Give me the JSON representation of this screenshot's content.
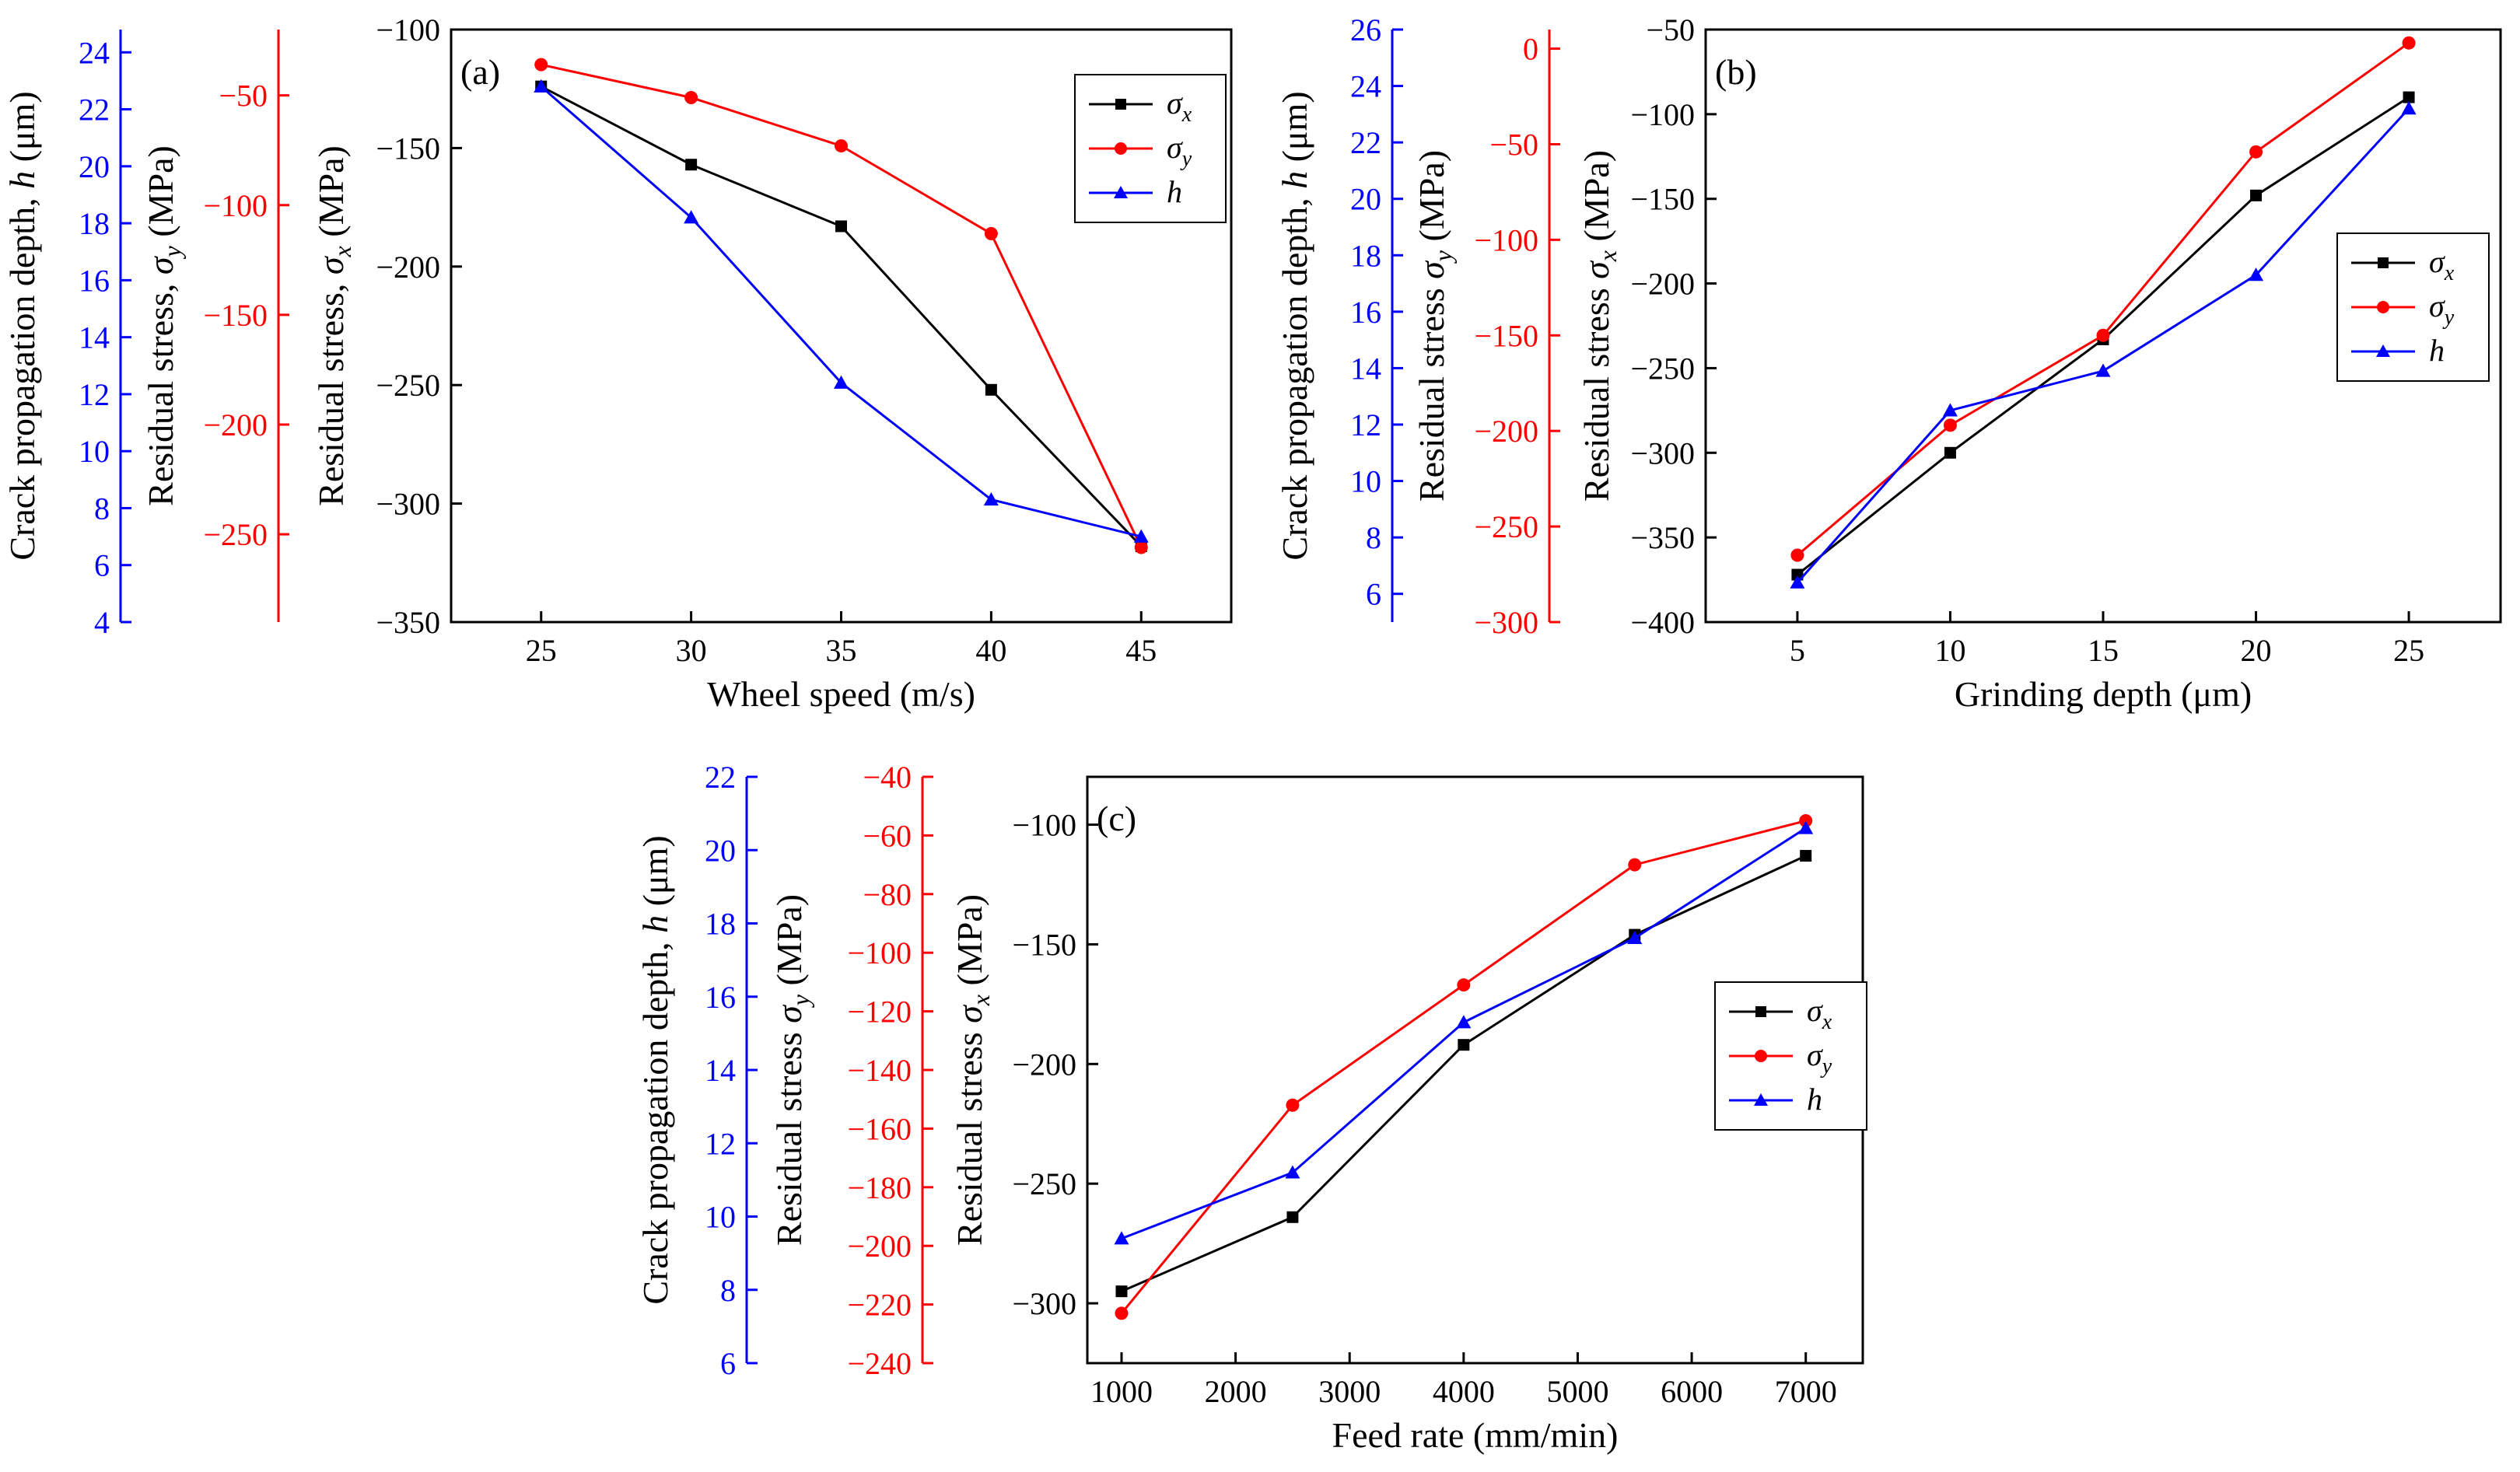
{
  "colors": {
    "sigma_x": "#000000",
    "sigma_y": "#ff0000",
    "h": "#0000ff"
  },
  "chart_data": [
    {
      "type": "line",
      "panel_label": "(a)",
      "xlabel": "Wheel speed (m/s)",
      "x": [
        25,
        30,
        35,
        40,
        45
      ],
      "xticks": [
        "25",
        "30",
        "35",
        "40",
        "45"
      ],
      "xlim": [
        22,
        48
      ],
      "legend_placement": "top-right",
      "axes": [
        {
          "key": "sx",
          "label": [
            "Residual stress, ",
            "σ",
            "x",
            " (MPa)"
          ],
          "color": "#000000",
          "ylim": [
            -350,
            -100
          ],
          "ticks": [
            "-350",
            "-300",
            "-250",
            "-200",
            "-150",
            "-100"
          ]
        },
        {
          "key": "sy",
          "label": [
            "Residual stress, ",
            "σ",
            "y",
            " (MPa)"
          ],
          "color": "#ff0000",
          "ylim": [
            -290,
            -20
          ],
          "ticks": [
            "-250",
            "-200",
            "-150",
            "-100",
            "-50"
          ]
        },
        {
          "key": "h",
          "label": [
            "Crack propagation depth, ",
            "h",
            "",
            " (μm)"
          ],
          "color": "#0000ff",
          "ylim": [
            4,
            24.8
          ],
          "ticks": [
            "4",
            "6",
            "8",
            "10",
            "12",
            "14",
            "16",
            "18",
            "20",
            "22",
            "24"
          ]
        }
      ],
      "series": [
        {
          "name": "σx",
          "sym": "σ",
          "sub": "x",
          "axis": "sx",
          "marker": "square",
          "values": [
            -124,
            -157,
            -183,
            -252,
            -318
          ]
        },
        {
          "name": "σy",
          "sym": "σ",
          "sub": "y",
          "axis": "sy",
          "marker": "circle",
          "values": [
            -36,
            -51,
            -73,
            -113,
            -256
          ]
        },
        {
          "name": "h",
          "sym": "h",
          "sub": "",
          "axis": "h",
          "marker": "triangle",
          "values": [
            22.8,
            18.2,
            12.4,
            8.3,
            7.0
          ]
        }
      ]
    },
    {
      "type": "line",
      "panel_label": "(b)",
      "xlabel": "Grinding depth (μm)",
      "x": [
        5,
        10,
        15,
        20,
        25
      ],
      "xticks": [
        "5",
        "10",
        "15",
        "20",
        "25"
      ],
      "xlim": [
        2,
        28
      ],
      "legend_placement": "center-right",
      "axes": [
        {
          "key": "sx",
          "label": [
            "Residual stress ",
            "σ",
            "x",
            " (MPa)"
          ],
          "color": "#000000",
          "ylim": [
            -400,
            -50
          ],
          "ticks": [
            "-400",
            "-350",
            "-300",
            "-250",
            "-200",
            "-150",
            "-100",
            "-50"
          ]
        },
        {
          "key": "sy",
          "label": [
            "Residual stress ",
            "σ",
            "y",
            " (MPa)"
          ],
          "color": "#ff0000",
          "ylim": [
            -300,
            10
          ],
          "ticks": [
            "-300",
            "-250",
            "-200",
            "-150",
            "-100",
            "-50",
            "0"
          ]
        },
        {
          "key": "h",
          "label": [
            "Crack propagation depth, ",
            "h",
            "",
            " (μm)"
          ],
          "color": "#0000ff",
          "ylim": [
            5,
            26
          ],
          "ticks": [
            "6",
            "8",
            "10",
            "12",
            "14",
            "16",
            "18",
            "20",
            "22",
            "24",
            "26"
          ]
        }
      ],
      "series": [
        {
          "name": "σx",
          "sym": "σ",
          "sub": "x",
          "axis": "sx",
          "marker": "square",
          "values": [
            -372,
            -300,
            -233,
            -148,
            -90
          ]
        },
        {
          "name": "σy",
          "sym": "σ",
          "sub": "y",
          "axis": "sy",
          "marker": "circle",
          "values": [
            -265,
            -197,
            -150,
            -54,
            3
          ]
        },
        {
          "name": "h",
          "sym": "h",
          "sub": "",
          "axis": "h",
          "marker": "triangle",
          "values": [
            6.4,
            12.5,
            13.9,
            17.3,
            23.2
          ]
        }
      ]
    },
    {
      "type": "line",
      "panel_label": "(c)",
      "xlabel": "Feed rate (mm/min)",
      "x": [
        1000,
        2500,
        4000,
        5500,
        7000
      ],
      "xticks": [
        "1000",
        "2000",
        "3000",
        "4000",
        "5000",
        "6000",
        "7000"
      ],
      "xtick_values": [
        1000,
        2000,
        3000,
        4000,
        5000,
        6000,
        7000
      ],
      "xlim": [
        700,
        7500
      ],
      "legend_placement": "center-right",
      "axes": [
        {
          "key": "sx",
          "label": [
            "Residual stress ",
            "σ",
            "x",
            " (MPa)"
          ],
          "color": "#000000",
          "ylim": [
            -325,
            -80
          ],
          "ticks": [
            "-300",
            "-250",
            "-200",
            "-150",
            "-100"
          ]
        },
        {
          "key": "sy",
          "label": [
            "Residual stress ",
            "σ",
            "y",
            " (MPa)"
          ],
          "color": "#ff0000",
          "ylim": [
            -240,
            -40
          ],
          "ticks": [
            "-240",
            "-220",
            "-200",
            "-180",
            "-160",
            "-140",
            "-120",
            "-100",
            "-80",
            "-60",
            "-40"
          ]
        },
        {
          "key": "h",
          "label": [
            "Crack propagation depth, ",
            "h",
            "",
            " (μm)"
          ],
          "color": "#0000ff",
          "ylim": [
            6,
            22
          ],
          "ticks": [
            "6",
            "8",
            "10",
            "12",
            "14",
            "16",
            "18",
            "20",
            "22"
          ]
        }
      ],
      "series": [
        {
          "name": "σx",
          "sym": "σ",
          "sub": "x",
          "axis": "sx",
          "marker": "square",
          "values": [
            -295,
            -264,
            -192,
            -146,
            -113
          ]
        },
        {
          "name": "σy",
          "sym": "σ",
          "sub": "y",
          "axis": "sy",
          "marker": "circle",
          "values": [
            -223,
            -152,
            -111,
            -70,
            -55
          ]
        },
        {
          "name": "h",
          "sym": "h",
          "sub": "",
          "axis": "h",
          "marker": "triangle",
          "values": [
            9.4,
            11.2,
            15.3,
            17.6,
            20.6
          ]
        }
      ]
    }
  ]
}
